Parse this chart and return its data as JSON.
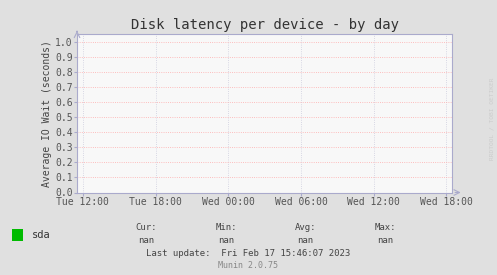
{
  "title": "Disk latency per device - by day",
  "ylabel": "Average IO Wait (seconds)",
  "background_color": "#e0e0e0",
  "plot_background_color": "#f8f8f8",
  "grid_color_h": "#ffaaaa",
  "grid_color_v": "#ccccdd",
  "axis_color": "#aaaacc",
  "yticks": [
    0.0,
    0.1,
    0.2,
    0.3,
    0.4,
    0.5,
    0.6,
    0.7,
    0.8,
    0.9,
    1.0
  ],
  "ylim": [
    0.0,
    1.05
  ],
  "xtick_labels": [
    "Tue 12:00",
    "Tue 18:00",
    "Wed 00:00",
    "Wed 06:00",
    "Wed 12:00",
    "Wed 18:00"
  ],
  "xtick_positions": [
    0,
    1,
    2,
    3,
    4,
    5
  ],
  "legend_label": "sda",
  "legend_color": "#00bb00",
  "cur_label": "Cur:",
  "cur_val": "nan",
  "min_label": "Min:",
  "min_val": "nan",
  "avg_label": "Avg:",
  "avg_val": "nan",
  "max_label": "Max:",
  "max_val": "nan",
  "last_update": "Last update:  Fri Feb 17 15:46:07 2023",
  "munin_label": "Munin 2.0.75",
  "rrdtool_label": "RRDTOOL / TOBI OETIKER",
  "title_fontsize": 10,
  "tick_fontsize": 7,
  "legend_fontsize": 7.5,
  "small_fontsize": 6.5,
  "munin_fontsize": 6
}
